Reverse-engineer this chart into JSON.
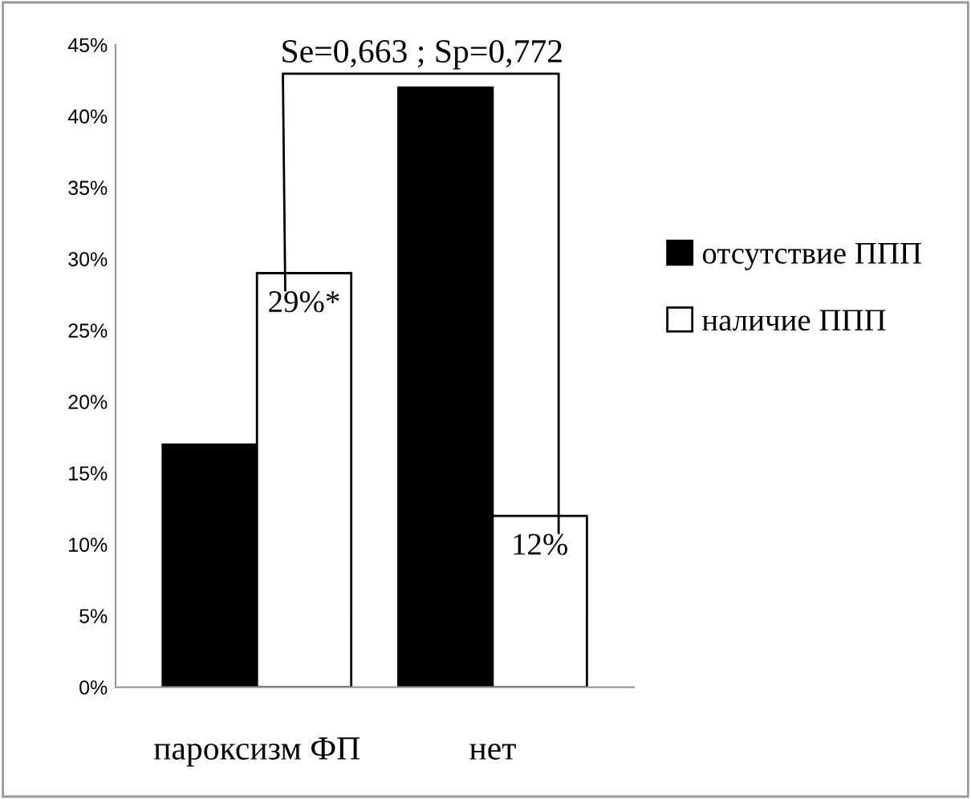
{
  "chart_data": {
    "type": "bar",
    "categories": [
      "пароксизм ФП",
      "нет"
    ],
    "series": [
      {
        "name": "отсутствие ППП",
        "color": "#000000",
        "values": [
          17,
          42
        ]
      },
      {
        "name": "наличие ППП",
        "color": "#ffffff",
        "values": [
          29,
          12
        ],
        "value_labels": [
          "29%*",
          "12%"
        ]
      }
    ],
    "ylim": [
      0,
      45
    ],
    "yticks": [
      {
        "value": 0,
        "label": "0%"
      },
      {
        "value": 5,
        "label": "5%"
      },
      {
        "value": 10,
        "label": "10%"
      },
      {
        "value": 15,
        "label": "15%"
      },
      {
        "value": 20,
        "label": "20%"
      },
      {
        "value": 25,
        "label": "25%"
      },
      {
        "value": 30,
        "label": "30%"
      },
      {
        "value": 35,
        "label": "35%"
      },
      {
        "value": 40,
        "label": "40%"
      },
      {
        "value": 45,
        "label": "45%"
      }
    ],
    "annotations": [
      "Se=0,663 ; Sp=0,772"
    ],
    "grid": false,
    "legend": "right"
  }
}
